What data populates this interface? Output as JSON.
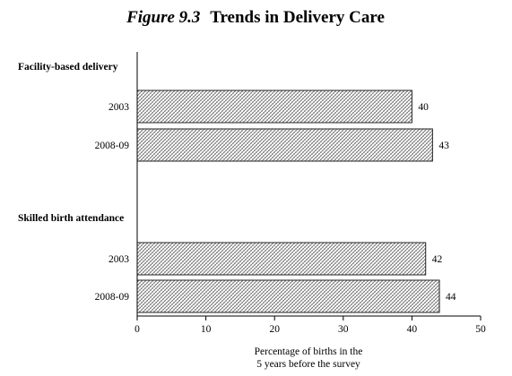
{
  "chart_data": {
    "type": "bar",
    "orientation": "horizontal",
    "title_prefix": "Figure 9.3",
    "title": "Trends in Delivery Care",
    "xlabel_lines": [
      "Percentage of births in the",
      "5 years before the survey"
    ],
    "xlim": [
      0,
      50
    ],
    "xticks": [
      0,
      10,
      20,
      30,
      40,
      50
    ],
    "grid": false,
    "bar_fill": "crosshatch",
    "colors": {
      "bar_stroke": "#222222",
      "hatch": "#555555",
      "axis": "#000000"
    },
    "groups": [
      {
        "name": "Facility-based delivery",
        "bars": [
          {
            "label": "2003",
            "value": 40
          },
          {
            "label": "2008-09",
            "value": 43
          }
        ]
      },
      {
        "name": "Skilled birth attendance",
        "bars": [
          {
            "label": "2003",
            "value": 42
          },
          {
            "label": "2008-09",
            "value": 44
          }
        ]
      }
    ]
  }
}
